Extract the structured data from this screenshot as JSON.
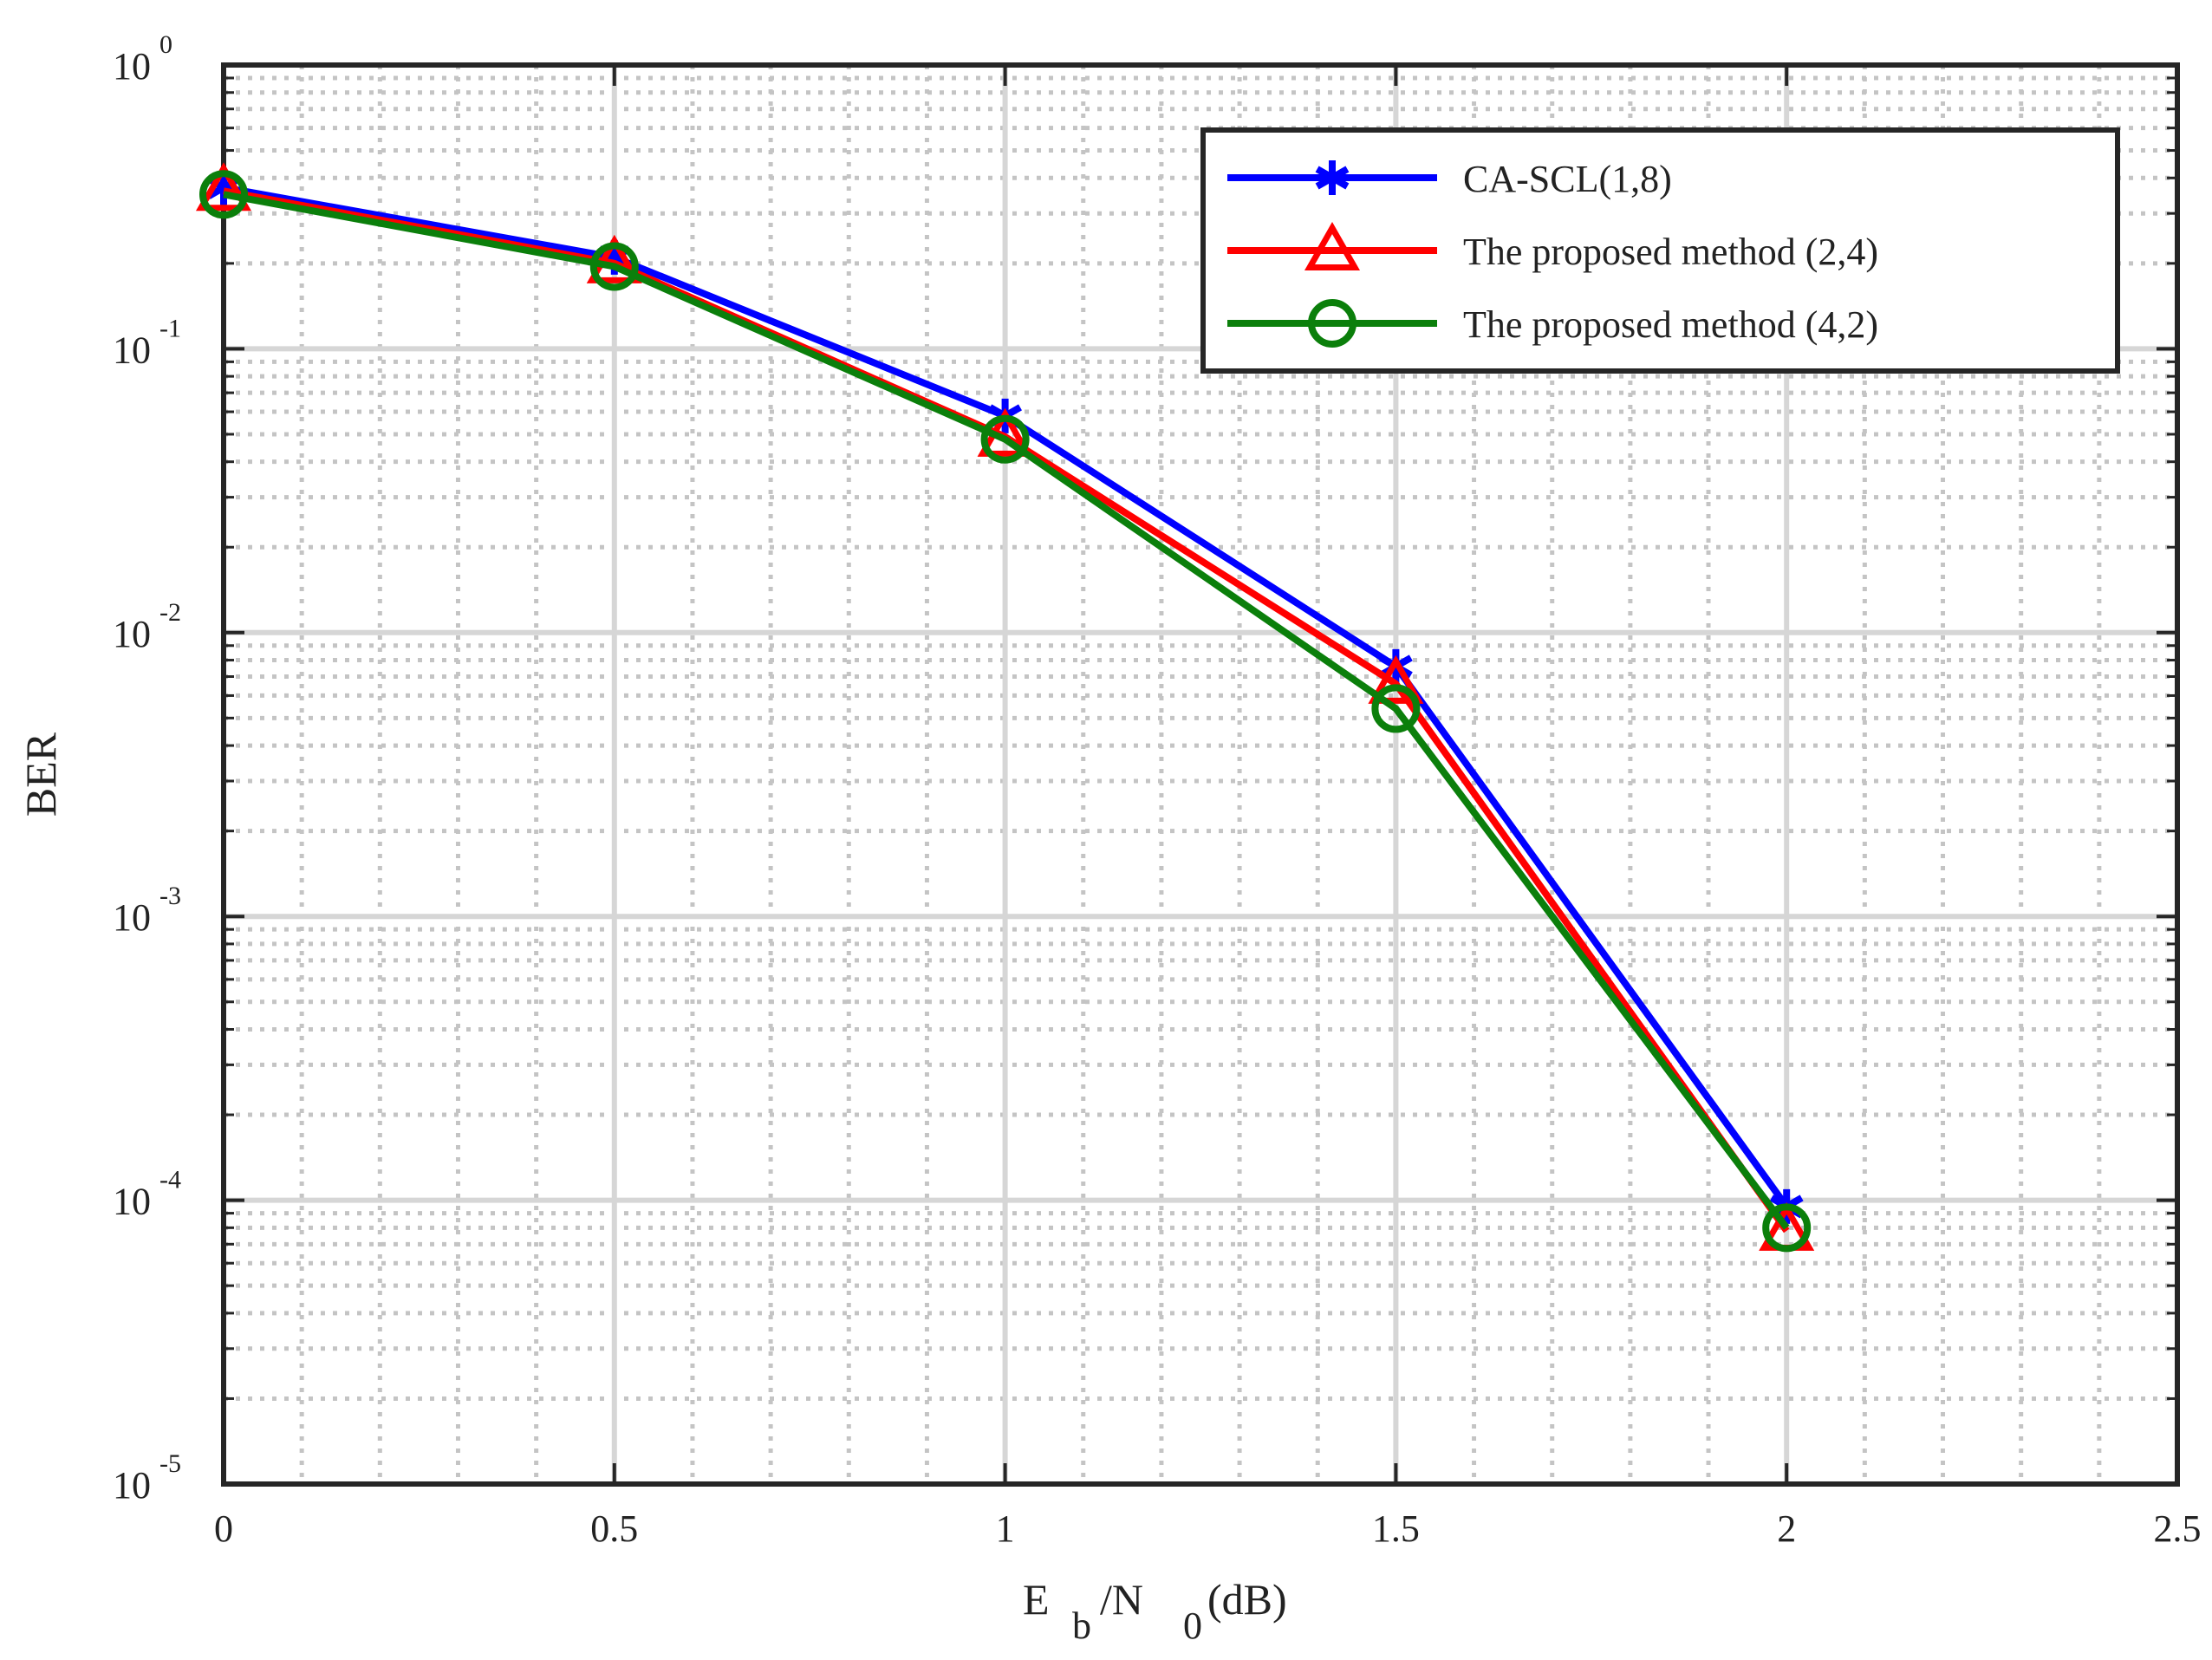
{
  "chart_data": {
    "type": "line",
    "title": "",
    "xlabel": {
      "main": "E",
      "sub1": "b",
      "mid": "/N",
      "sub2": "0",
      "tail": "(dB)"
    },
    "ylabel": "BER",
    "xlim": [
      0,
      2.5
    ],
    "ylim": [
      1e-05,
      1
    ],
    "yscale": "log",
    "grid": true,
    "legend_position": "top-right",
    "x_ticks": [
      0,
      0.5,
      1,
      1.5,
      2,
      2.5
    ],
    "x_tick_labels": [
      "0",
      "0.5",
      "1",
      "1.5",
      "2",
      "2.5"
    ],
    "y_tick_labels": [
      {
        "base": "10",
        "exp": "0"
      },
      {
        "base": "10",
        "exp": "-1"
      },
      {
        "base": "10",
        "exp": "-2"
      },
      {
        "base": "10",
        "exp": "-3"
      },
      {
        "base": "10",
        "exp": "-4"
      },
      {
        "base": "10",
        "exp": "-5"
      }
    ],
    "y_tick_values": [
      1,
      0.1,
      0.01,
      0.001,
      0.0001,
      1e-05
    ],
    "x": [
      0,
      0.5,
      1,
      1.5,
      2
    ],
    "series": [
      {
        "name": "CA-SCL(1,8)",
        "color": "#0000ff",
        "marker": "asterisk",
        "values": [
          0.37,
          0.21,
          0.058,
          0.0076,
          9.5e-05
        ]
      },
      {
        "name": "The proposed method (2,4)",
        "color": "#ff0000",
        "marker": "triangle",
        "values": [
          0.36,
          0.2,
          0.049,
          0.0066,
          7.8e-05
        ]
      },
      {
        "name": "The proposed method (4,2)",
        "color": "#0b7f0b",
        "marker": "circle",
        "values": [
          0.35,
          0.195,
          0.048,
          0.0054,
          8e-05
        ]
      }
    ]
  }
}
